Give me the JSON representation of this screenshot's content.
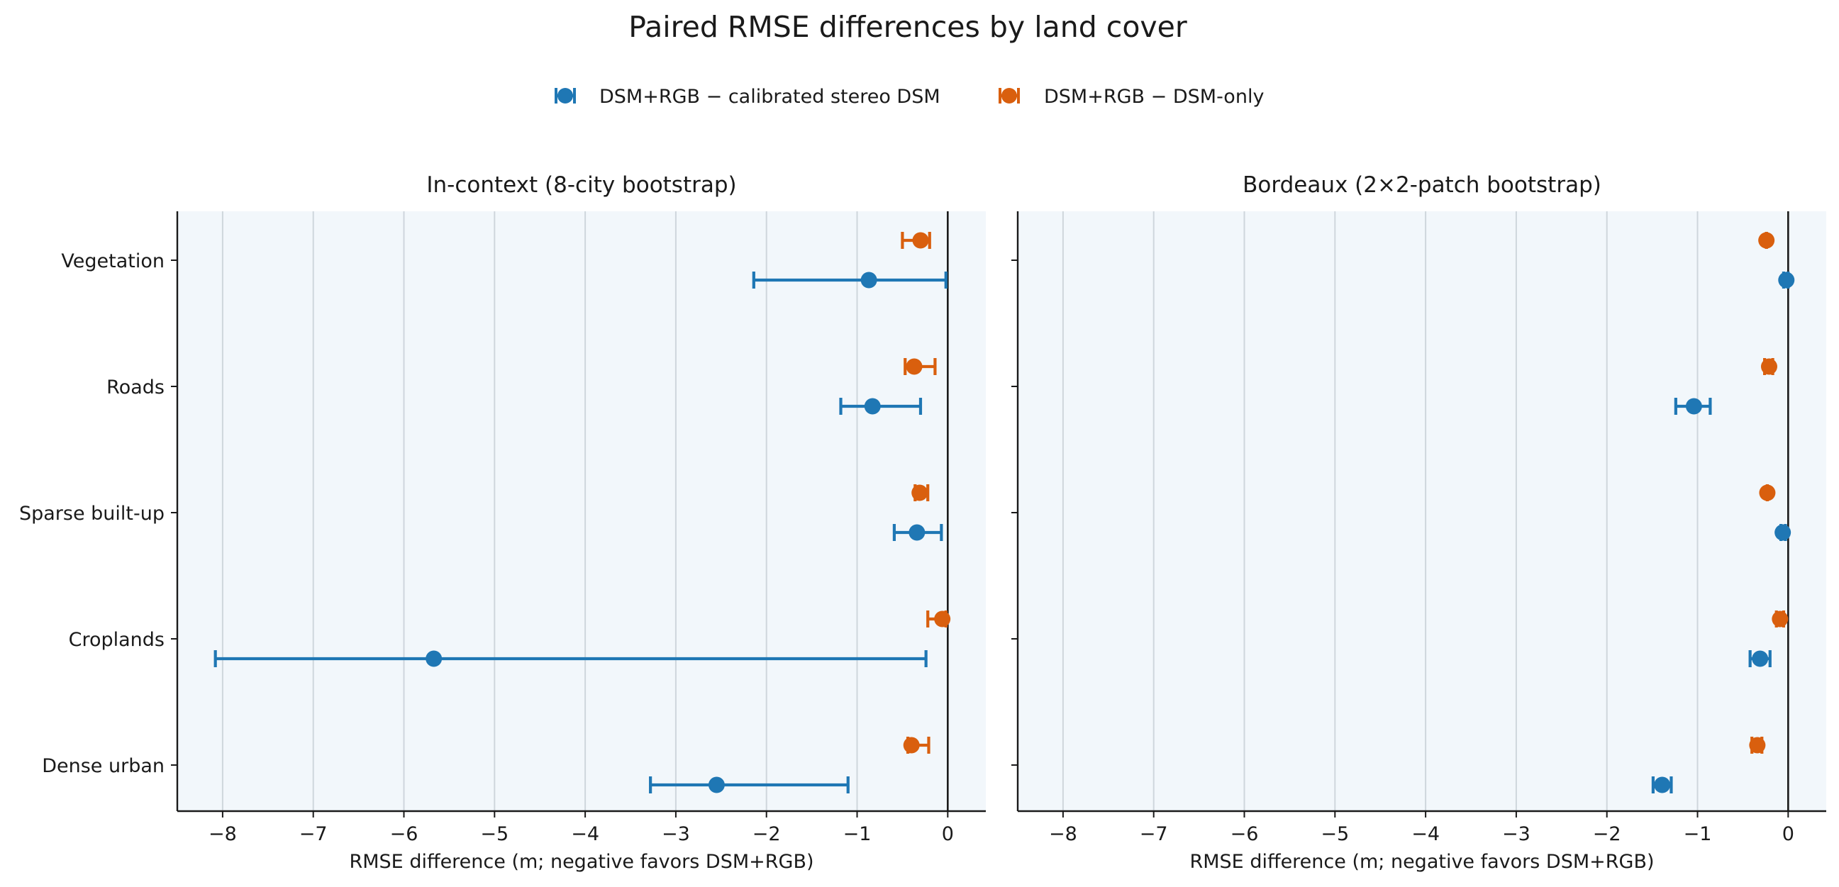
{
  "figure": {
    "title": "Paired RMSE differences by land cover"
  },
  "legend": {
    "placement": "top-center",
    "entries": [
      {
        "label": "DSM+RGB − calibrated stereo DSM",
        "color": "#1f77b4"
      },
      {
        "label": "DSM+RGB − DSM-only",
        "color": "#d95f0e"
      }
    ]
  },
  "chart_data": [
    {
      "type": "errorbar",
      "title": "In-context (8-city bootstrap)",
      "xlabel": "RMSE difference (m; negative favors DSM+RGB)",
      "xlim": [
        -8.5,
        0.42
      ],
      "xticks": [
        -8,
        -7,
        -6,
        -5,
        -4,
        -3,
        -2,
        -1,
        0
      ],
      "xtick_labels": [
        "−8",
        "−7",
        "−6",
        "−5",
        "−4",
        "−3",
        "−2",
        "−1",
        "0"
      ],
      "background": "#f2f7fb",
      "grid": "vertical",
      "categories": [
        "Vegetation",
        "Roads",
        "Sparse built-up",
        "Croplands",
        "Dense urban"
      ],
      "series": [
        {
          "color": "#d95f0e",
          "points": [
            {
              "value": -0.3,
              "lo": -0.5,
              "hi": -0.2
            },
            {
              "value": -0.37,
              "lo": -0.47,
              "hi": -0.14
            },
            {
              "value": -0.31,
              "lo": -0.36,
              "hi": -0.22
            },
            {
              "value": -0.06,
              "lo": -0.22,
              "hi": -0.02
            },
            {
              "value": -0.4,
              "lo": -0.44,
              "hi": -0.21
            }
          ]
        },
        {
          "color": "#1f77b4",
          "points": [
            {
              "value": -0.87,
              "lo": -2.14,
              "hi": -0.02
            },
            {
              "value": -0.83,
              "lo": -1.18,
              "hi": -0.3
            },
            {
              "value": -0.34,
              "lo": -0.59,
              "hi": -0.07
            },
            {
              "value": -5.67,
              "lo": -8.08,
              "hi": -0.24
            },
            {
              "value": -2.55,
              "lo": -3.28,
              "hi": -1.1
            }
          ]
        }
      ]
    },
    {
      "type": "errorbar",
      "title": "Bordeaux (2×2-patch bootstrap)",
      "xlabel": "RMSE difference (m; negative favors DSM+RGB)",
      "xlim": [
        -8.5,
        0.42
      ],
      "xticks": [
        -8,
        -7,
        -6,
        -5,
        -4,
        -3,
        -2,
        -1,
        0
      ],
      "xtick_labels": [
        "−8",
        "−7",
        "−6",
        "−5",
        "−4",
        "−3",
        "−2",
        "−1",
        "0"
      ],
      "background": "#f2f7fb",
      "grid": "vertical",
      "categories": [
        "Vegetation",
        "Roads",
        "Sparse built-up",
        "Croplands",
        "Dense urban"
      ],
      "series": [
        {
          "color": "#d95f0e",
          "points": [
            {
              "value": -0.24,
              "lo": -0.24,
              "hi": -0.24
            },
            {
              "value": -0.21,
              "lo": -0.26,
              "hi": -0.17
            },
            {
              "value": -0.23,
              "lo": -0.23,
              "hi": -0.23
            },
            {
              "value": -0.09,
              "lo": -0.13,
              "hi": -0.05
            },
            {
              "value": -0.34,
              "lo": -0.4,
              "hi": -0.29
            }
          ]
        },
        {
          "color": "#1f77b4",
          "points": [
            {
              "value": -0.02,
              "lo": -0.05,
              "hi": 0.0
            },
            {
              "value": -1.04,
              "lo": -1.24,
              "hi": -0.86
            },
            {
              "value": -0.06,
              "lo": -0.08,
              "hi": -0.03
            },
            {
              "value": -0.31,
              "lo": -0.42,
              "hi": -0.2
            },
            {
              "value": -1.39,
              "lo": -1.49,
              "hi": -1.29
            }
          ]
        }
      ]
    }
  ]
}
